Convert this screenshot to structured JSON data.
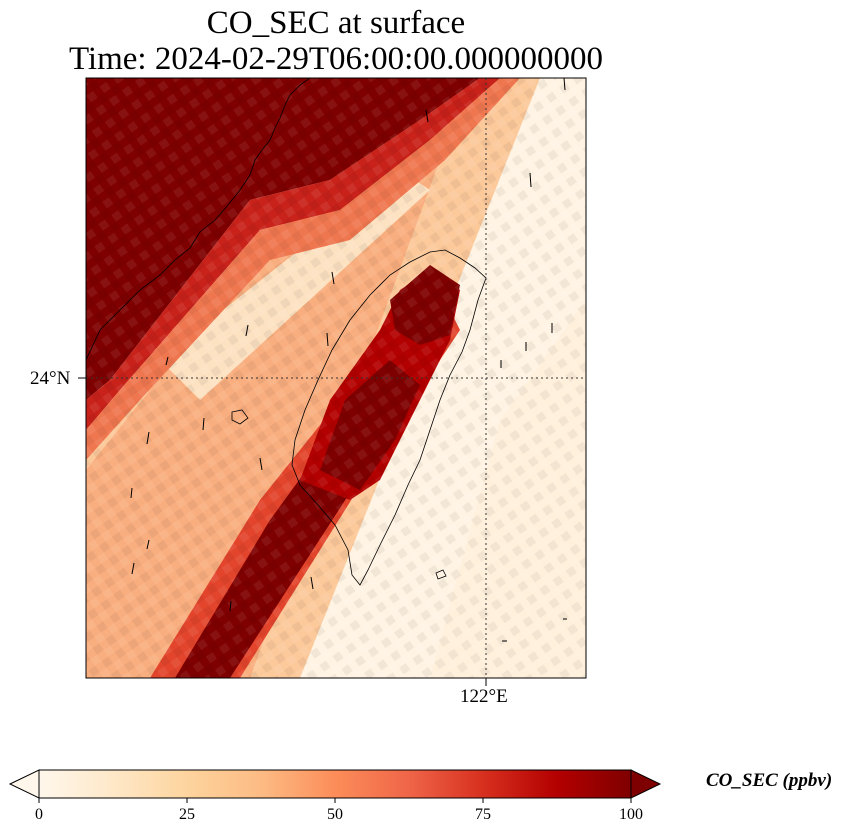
{
  "title_line1": "CO_SEC at surface",
  "title_line2": "Time: 2024-02-29T06:00:00.000000000",
  "map": {
    "lat_tick_label": "24°N",
    "lon_tick_label": "122°E",
    "field_description_colors": {
      "high": "#7f0000",
      "mid": "#e9633f",
      "low": "#fff7ec"
    }
  },
  "colorbar": {
    "label": "CO_SEC (ppbv)",
    "ticks": [
      "0",
      "25",
      "50",
      "75",
      "100"
    ],
    "range": [
      0,
      100
    ],
    "extend": "both",
    "colormap": [
      "#fff7ec",
      "#fee8c8",
      "#fdd49e",
      "#fdbb84",
      "#fc8d59",
      "#ef6548",
      "#d7301f",
      "#b30000",
      "#7f0000"
    ]
  }
}
